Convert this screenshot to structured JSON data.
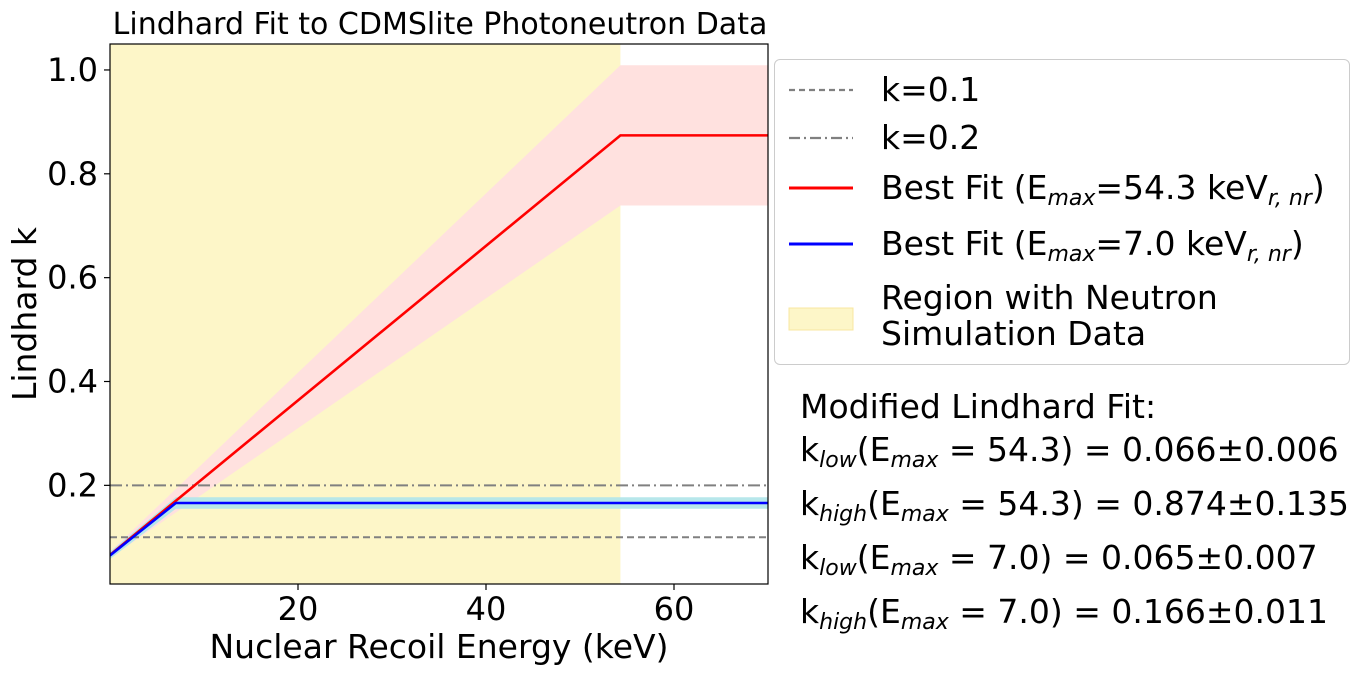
{
  "chart_data": {
    "type": "line",
    "title": "Lindhard Fit to CDMSlite Photoneutron Data",
    "xlabel": "Nuclear Recoil Energy (keV)",
    "ylabel": "Lindhard k",
    "xlim": [
      0,
      70
    ],
    "ylim": [
      0.01,
      1.05
    ],
    "xticks": [
      20,
      40,
      60
    ],
    "yticks": [
      0.2,
      0.4,
      0.6,
      0.8,
      1.0
    ],
    "xtick_labels": [
      "20",
      "40",
      "60"
    ],
    "ytick_labels": [
      "0.2",
      "0.4",
      "0.6",
      "0.8",
      "1.0"
    ],
    "shaded_region": {
      "label": "Region with Neutron Simulation Data",
      "x": [
        0,
        54.3
      ],
      "color": "#fdf6c8"
    },
    "series": [
      {
        "name": "k=0.1",
        "style": "dashed",
        "color": "#808080",
        "x": [
          0,
          70
        ],
        "y": [
          0.1,
          0.1
        ]
      },
      {
        "name": "k=0.2",
        "style": "dashdot",
        "color": "#808080",
        "x": [
          0,
          70
        ],
        "y": [
          0.2,
          0.2
        ]
      },
      {
        "name": "Best Fit (E_max=54.3 keV_r,nr)",
        "style": "solid",
        "color": "#ff0000",
        "x": [
          0,
          54.3,
          70
        ],
        "y": [
          0.066,
          0.874,
          0.874
        ],
        "band": {
          "color": "#ffe1df",
          "x": [
            0,
            54.3,
            70
          ],
          "lower": [
            0.06,
            0.739,
            0.739
          ],
          "upper": [
            0.072,
            1.009,
            1.009
          ]
        }
      },
      {
        "name": "Best Fit (E_max=7.0 keV_r,nr)",
        "style": "solid",
        "color": "#0000ff",
        "x": [
          0,
          7.0,
          70
        ],
        "y": [
          0.065,
          0.166,
          0.166
        ],
        "band": {
          "color": "#b3e6ea",
          "x": [
            0,
            7.0,
            70
          ],
          "lower": [
            0.058,
            0.155,
            0.155
          ],
          "upper": [
            0.072,
            0.177,
            0.177
          ]
        }
      }
    ],
    "legend_position": "outside-right-top",
    "grid": false
  },
  "legend": {
    "k01": "k=0.1",
    "k02": "k=0.2",
    "fit_red_prefix": "Best Fit (E",
    "fit_red_sub": "max",
    "fit_red_mid": "=54.3 keV",
    "fit_red_sub2": "r, nr",
    "fit_red_suffix": ")",
    "fit_blue_prefix": "Best Fit (E",
    "fit_blue_sub": "max",
    "fit_blue_mid": "=7.0 keV",
    "fit_blue_sub2": "r, nr",
    "fit_blue_suffix": ")",
    "region_line1": "Region with Neutron",
    "region_line2": "Simulation Data"
  },
  "annotation": {
    "heading": "Modified Lindhard Fit:",
    "rows": [
      {
        "k": "k",
        "k_sub": "low",
        "e": "(E",
        "e_sub": "max",
        "mid": " = 54.3) = 0.066±0.006"
      },
      {
        "k": "k",
        "k_sub": "high",
        "e": "(E",
        "e_sub": "max",
        "mid": " = 54.3) = 0.874±0.135"
      },
      {
        "k": "k",
        "k_sub": "low",
        "e": "(E",
        "e_sub": "max",
        "mid": " = 7.0) = 0.065±0.007"
      },
      {
        "k": "k",
        "k_sub": "high",
        "e": "(E",
        "e_sub": "max",
        "mid": " = 7.0) = 0.166±0.011"
      }
    ]
  }
}
